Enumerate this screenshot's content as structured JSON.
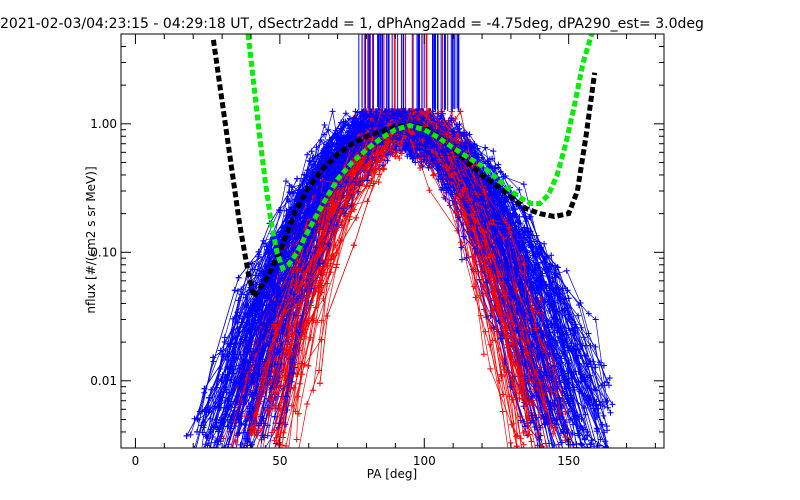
{
  "chart_data": {
    "type": "scatter",
    "title": "2021-02-03/04:23:15 - 04:29:18 UT, dSectr2add = 1, dPhAng2add = -4.75deg, dPA290_est=   3.0deg",
    "xlabel": "PA [deg]",
    "ylabel": "nflux [#/(cm2 s sr MeV)]",
    "xlim": [
      -5,
      183
    ],
    "ylim": [
      0.003,
      5.0
    ],
    "yscale": "log",
    "x_ticks": [
      0,
      50,
      100,
      150
    ],
    "x_tick_labels": [
      "0",
      "50",
      "100",
      "150"
    ],
    "y_ticks": [
      0.01,
      0.1,
      1.0
    ],
    "y_tick_labels": [
      "0.01",
      "0.10",
      "1.00"
    ],
    "grid": false,
    "legend": "none",
    "series": [
      {
        "color": "#ff0000",
        "marker": "plus",
        "style": "line+markers",
        "peak_x": 95,
        "peak_y": 1.0,
        "left_width": 22,
        "right_width": 20
      },
      {
        "color": "#0000ff",
        "marker": "plus",
        "style": "line+markers",
        "peak_x": 90,
        "peak_y": 1.0,
        "left_width": 25,
        "right_width": 28
      },
      {
        "color": "#000000",
        "style": "dashed-thick",
        "x": [
          27,
          30,
          33,
          36,
          39,
          41,
          45,
          50,
          55,
          60,
          65,
          70,
          75,
          80,
          85,
          90,
          95,
          100,
          105,
          110,
          115,
          120,
          125,
          130,
          135,
          140,
          145,
          150,
          153,
          156,
          159
        ],
        "y": [
          4.5,
          1.5,
          0.5,
          0.17,
          0.07,
          0.045,
          0.06,
          0.1,
          0.2,
          0.32,
          0.45,
          0.58,
          0.7,
          0.8,
          0.87,
          0.95,
          0.98,
          0.93,
          0.8,
          0.65,
          0.5,
          0.4,
          0.33,
          0.27,
          0.22,
          0.2,
          0.19,
          0.2,
          0.3,
          0.8,
          2.5
        ]
      },
      {
        "color": "#00ee00",
        "style": "dashed-thick",
        "x": [
          39,
          41,
          43,
          45,
          47,
          49,
          51,
          53,
          56,
          60,
          65,
          70,
          75,
          80,
          85,
          90,
          95,
          100,
          105,
          110,
          115,
          120,
          125,
          130,
          134,
          137,
          140,
          143,
          146,
          149,
          152,
          155,
          158
        ],
        "y": [
          5.0,
          2.0,
          0.8,
          0.35,
          0.17,
          0.1,
          0.075,
          0.08,
          0.1,
          0.15,
          0.24,
          0.37,
          0.5,
          0.63,
          0.77,
          0.9,
          0.97,
          0.9,
          0.78,
          0.65,
          0.55,
          0.47,
          0.38,
          0.3,
          0.26,
          0.24,
          0.24,
          0.28,
          0.4,
          0.7,
          1.4,
          3.0,
          5.0
        ]
      }
    ]
  }
}
